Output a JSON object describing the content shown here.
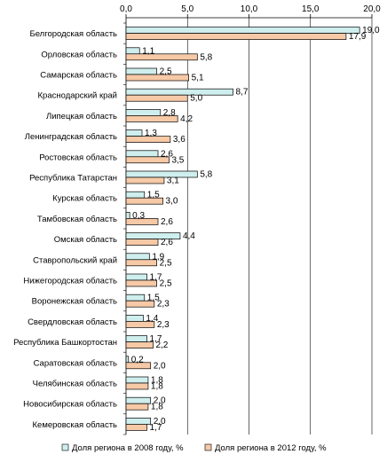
{
  "chart_data": {
    "type": "bar",
    "orientation": "horizontal",
    "xlim": [
      0,
      20
    ],
    "ticks": [
      "0,0",
      "5,0",
      "10,0",
      "15,0",
      "20,0"
    ],
    "tick_values": [
      0,
      5,
      10,
      15,
      20
    ],
    "grid": "vertical",
    "legend_position": "bottom",
    "categories": [
      "Белгородская область",
      "Орловская область",
      "Самарская область",
      "Краснодарский край",
      "Липецкая область",
      "Ленинградская область",
      "Ростовская область",
      "Республика Татарстан",
      "Курская область",
      "Тамбовская область",
      "Омская область",
      "Ставропольский край",
      "Нижегородская область",
      "Воронежская область",
      "Свердловская область",
      "Республика Башкортостан",
      "Саратовская область",
      "Челябинская область",
      "Новосибирская область",
      "Кемеровская область"
    ],
    "series": [
      {
        "name": "Доля региона в 2008 году, %",
        "color": "#cfeeee",
        "values": [
          19.0,
          1.1,
          2.5,
          8.7,
          2.8,
          1.3,
          2.6,
          5.8,
          1.5,
          0.3,
          4.4,
          1.9,
          1.7,
          1.5,
          1.4,
          1.7,
          0.2,
          1.8,
          2.0,
          2.0
        ],
        "labels": [
          "19,0",
          "1,1",
          "2,5",
          "8,7",
          "2,8",
          "1,3",
          "2,6",
          "5,8",
          "1,5",
          "0,3",
          "4,4",
          "1,9",
          "1,7",
          "1,5",
          "1,4",
          "1,7",
          "0,2",
          "1,8",
          "2,0",
          "2,0"
        ]
      },
      {
        "name": "Доля региона в 2012 году, %",
        "color": "#f6c9a7",
        "values": [
          17.9,
          5.8,
          5.1,
          5.0,
          4.2,
          3.6,
          3.5,
          3.1,
          3.0,
          2.6,
          2.6,
          2.5,
          2.5,
          2.3,
          2.3,
          2.2,
          2.0,
          1.8,
          1.8,
          1.7
        ],
        "labels": [
          "17,9",
          "5,8",
          "5,1",
          "5,0",
          "4,2",
          "3,6",
          "3,5",
          "3,1",
          "3,0",
          "2,6",
          "2,6",
          "2,5",
          "2,5",
          "2,3",
          "2,3",
          "2,2",
          "2,0",
          "1,8",
          "1,8",
          "1,7"
        ]
      }
    ]
  }
}
